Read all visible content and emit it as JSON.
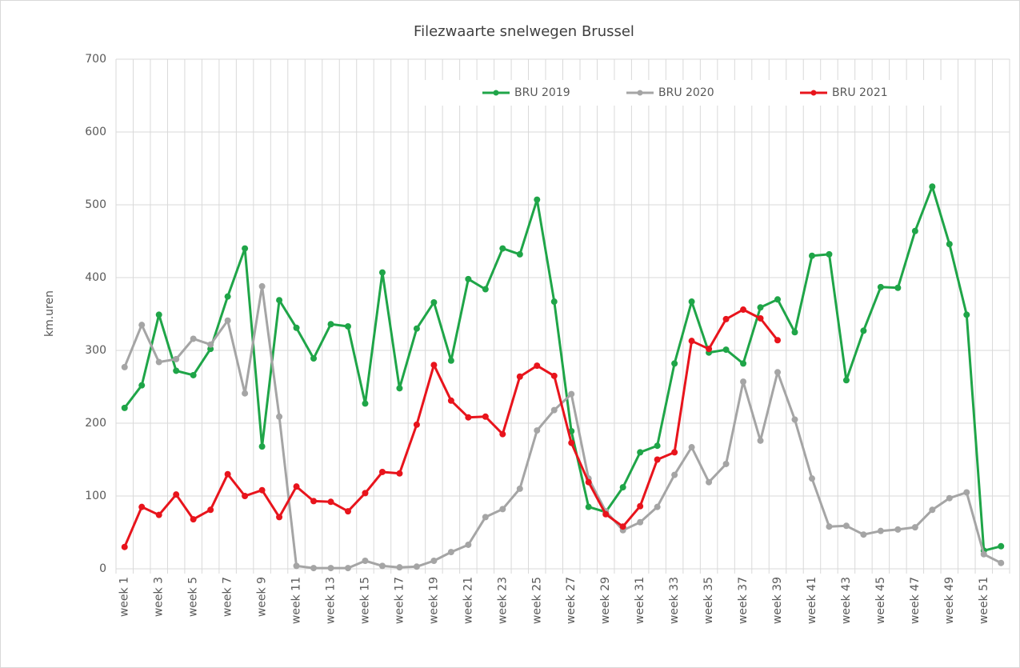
{
  "chart_data": {
    "type": "line",
    "title": "Filezwaarte snelwegen Brussel",
    "y_label": "km.uren",
    "categories": [
      "week 1",
      null,
      "week 3",
      null,
      "week 5",
      null,
      "week 7",
      null,
      "week 9",
      null,
      "week 11",
      null,
      "week 13",
      null,
      "week 15",
      null,
      "week 17",
      null,
      "week 19",
      null,
      "week 21",
      null,
      "week 23",
      null,
      "week 25",
      null,
      "week 27",
      null,
      "week 29",
      null,
      "week 31",
      null,
      "week 33",
      null,
      "week 35",
      null,
      "week 37",
      null,
      "week 39",
      null,
      "week 41",
      null,
      "week 43",
      null,
      "week 45",
      null,
      "week 47",
      null,
      "week 49",
      null,
      "week 51",
      null
    ],
    "series": [
      {
        "name": "BRU 2019",
        "color": "#1fa548",
        "values": [
          221,
          252,
          349,
          272,
          266,
          302,
          374,
          440,
          168,
          369,
          331,
          289,
          336,
          333,
          227,
          407,
          248,
          330,
          366,
          286,
          398,
          384,
          440,
          432,
          507,
          367,
          189,
          85,
          78,
          112,
          160,
          169,
          282,
          367,
          297,
          301,
          282,
          359,
          370,
          325,
          430,
          432,
          259,
          327,
          387,
          386,
          464,
          525,
          446,
          349,
          25,
          31
        ]
      },
      {
        "name": "BRU 2020",
        "color": "#a5a5a5",
        "values": [
          277,
          335,
          284,
          288,
          316,
          308,
          341,
          241,
          388,
          209,
          4,
          1,
          1,
          1,
          11,
          4,
          2,
          3,
          11,
          23,
          33,
          71,
          82,
          110,
          190,
          218,
          240,
          124,
          79,
          53,
          64,
          85,
          129,
          167,
          119,
          144,
          257,
          176,
          270,
          205,
          124,
          58,
          59,
          47,
          52,
          54,
          57,
          81,
          97,
          105,
          20,
          8
        ]
      },
      {
        "name": "BRU 2021",
        "color": "#e8141c",
        "values": [
          30,
          85,
          74,
          102,
          68,
          81,
          130,
          100,
          108,
          71,
          113,
          93,
          92,
          79,
          104,
          133,
          131,
          198,
          280,
          231,
          208,
          209,
          185,
          264,
          279,
          265,
          173,
          119,
          75,
          58,
          86,
          150,
          160,
          313,
          302,
          343,
          356,
          344,
          314,
          null,
          null,
          null,
          null,
          null,
          null,
          null,
          null,
          null,
          null,
          null,
          null,
          null
        ]
      }
    ],
    "ylim": [
      0,
      700
    ],
    "yticks": [
      0,
      100,
      200,
      300,
      400,
      500,
      600,
      700
    ],
    "grid": true,
    "legend": "top"
  }
}
